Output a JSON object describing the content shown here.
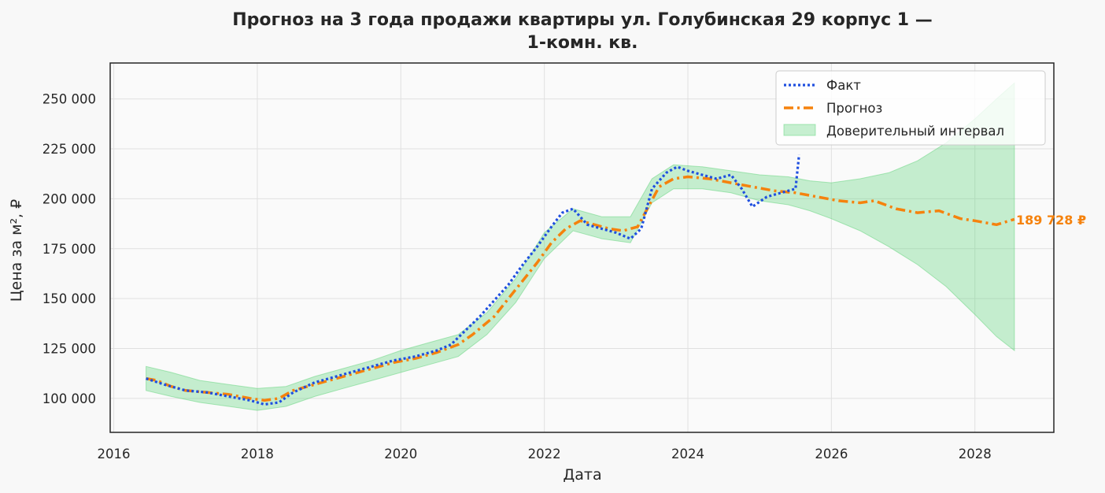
{
  "chart_data": {
    "type": "line",
    "title_line1": "Прогноз на 3 года продажи квартиры  ул. Голубинская 29 корпус 1 —",
    "title_line2": "1-комн. кв.",
    "xlabel": "Дата",
    "ylabel": "Цена за м², ₽",
    "xlim": [
      2015.95,
      2029.1
    ],
    "ylim": [
      83000,
      268000
    ],
    "x_ticks": [
      2016,
      2018,
      2020,
      2022,
      2024,
      2026,
      2028
    ],
    "x_tick_labels": [
      "2016",
      "2018",
      "2020",
      "2022",
      "2024",
      "2026",
      "2028"
    ],
    "y_ticks": [
      100000,
      125000,
      150000,
      175000,
      200000,
      225000,
      250000
    ],
    "y_tick_labels": [
      "100 000",
      "125 000",
      "150 000",
      "175 000",
      "200 000",
      "225 000",
      "250 000"
    ],
    "grid": true,
    "legend_position": "top-right",
    "series": [
      {
        "name": "Факт",
        "style": "dotted",
        "color": "#1f4fe0",
        "x": [
          2016.45,
          2016.7,
          2017.0,
          2017.3,
          2017.6,
          2017.9,
          2018.1,
          2018.3,
          2018.5,
          2018.8,
          2019.0,
          2019.3,
          2019.6,
          2019.9,
          2020.2,
          2020.5,
          2020.7,
          2020.9,
          2021.1,
          2021.3,
          2021.5,
          2021.7,
          2021.9,
          2022.1,
          2022.25,
          2022.4,
          2022.6,
          2022.8,
          2023.0,
          2023.2,
          2023.35,
          2023.5,
          2023.7,
          2023.85,
          2024.0,
          2024.2,
          2024.4,
          2024.6,
          2024.75,
          2024.9,
          2025.1,
          2025.3,
          2025.5,
          2025.55
        ],
        "y": [
          110000,
          107000,
          104000,
          103000,
          101000,
          99000,
          97000,
          98000,
          103000,
          108000,
          110000,
          113000,
          116000,
          119000,
          121000,
          124000,
          127000,
          134000,
          141000,
          149000,
          157000,
          167000,
          176000,
          186000,
          193000,
          195000,
          187000,
          185000,
          183000,
          180000,
          185000,
          205000,
          213000,
          216000,
          214000,
          212000,
          210000,
          212000,
          205000,
          196000,
          201000,
          203000,
          205000,
          222000
        ]
      },
      {
        "name": "Прогноз",
        "style": "dashdot",
        "color": "#f5820d",
        "x": [
          2016.45,
          2016.6,
          2016.8,
          2017.0,
          2017.3,
          2017.6,
          2017.9,
          2018.1,
          2018.3,
          2018.5,
          2018.8,
          2019.0,
          2019.3,
          2019.6,
          2019.9,
          2020.2,
          2020.5,
          2020.8,
          2021.0,
          2021.3,
          2021.5,
          2021.7,
          2021.9,
          2022.1,
          2022.3,
          2022.5,
          2022.7,
          2022.9,
          2023.1,
          2023.3,
          2023.45,
          2023.6,
          2023.8,
          2024.0,
          2024.3,
          2024.6,
          2024.9,
          2025.2,
          2025.5,
          2025.8,
          2026.1,
          2026.4,
          2026.6,
          2026.9,
          2027.2,
          2027.5,
          2027.8,
          2028.0,
          2028.3,
          2028.55
        ],
        "y": [
          110000,
          109000,
          106000,
          104000,
          103000,
          102000,
          100000,
          99000,
          100000,
          104000,
          107000,
          109000,
          112000,
          115000,
          118000,
          120000,
          123000,
          127000,
          132000,
          141000,
          150000,
          159000,
          168000,
          178000,
          185000,
          189000,
          187000,
          185000,
          184000,
          186000,
          196000,
          206000,
          210000,
          211000,
          210000,
          208000,
          206000,
          204000,
          203000,
          201000,
          199000,
          198000,
          199000,
          195000,
          193000,
          194000,
          190000,
          189000,
          187000,
          189728
        ]
      }
    ],
    "confidence_interval": {
      "name": "Доверительный интервал",
      "color": "#5fd37a",
      "x": [
        2016.45,
        2016.8,
        2017.2,
        2017.6,
        2018.0,
        2018.4,
        2018.8,
        2019.2,
        2019.6,
        2020.0,
        2020.4,
        2020.8,
        2021.2,
        2021.6,
        2022.0,
        2022.4,
        2022.8,
        2023.2,
        2023.5,
        2023.8,
        2024.2,
        2024.6,
        2025.0,
        2025.4,
        2025.7,
        2026.0,
        2026.4,
        2026.8,
        2027.2,
        2027.6,
        2028.0,
        2028.3,
        2028.55
      ],
      "lower": [
        104000,
        101000,
        98000,
        96000,
        94000,
        96000,
        101000,
        105000,
        109000,
        113000,
        117000,
        121000,
        132000,
        148000,
        170000,
        184000,
        180000,
        178000,
        198000,
        205000,
        205000,
        203000,
        199000,
        197000,
        194000,
        190000,
        184000,
        176000,
        167000,
        156000,
        142000,
        131000,
        124000
      ],
      "upper": [
        116000,
        113000,
        109000,
        107000,
        105000,
        106000,
        111000,
        115000,
        119000,
        124000,
        128000,
        132000,
        143000,
        160000,
        183000,
        195000,
        191000,
        191000,
        210000,
        217000,
        216000,
        214000,
        212000,
        211000,
        209000,
        208000,
        210000,
        213000,
        219000,
        228000,
        240000,
        250000,
        258000
      ]
    },
    "end_label": "189 728 ₽",
    "end_label_color": "#f5820d"
  }
}
